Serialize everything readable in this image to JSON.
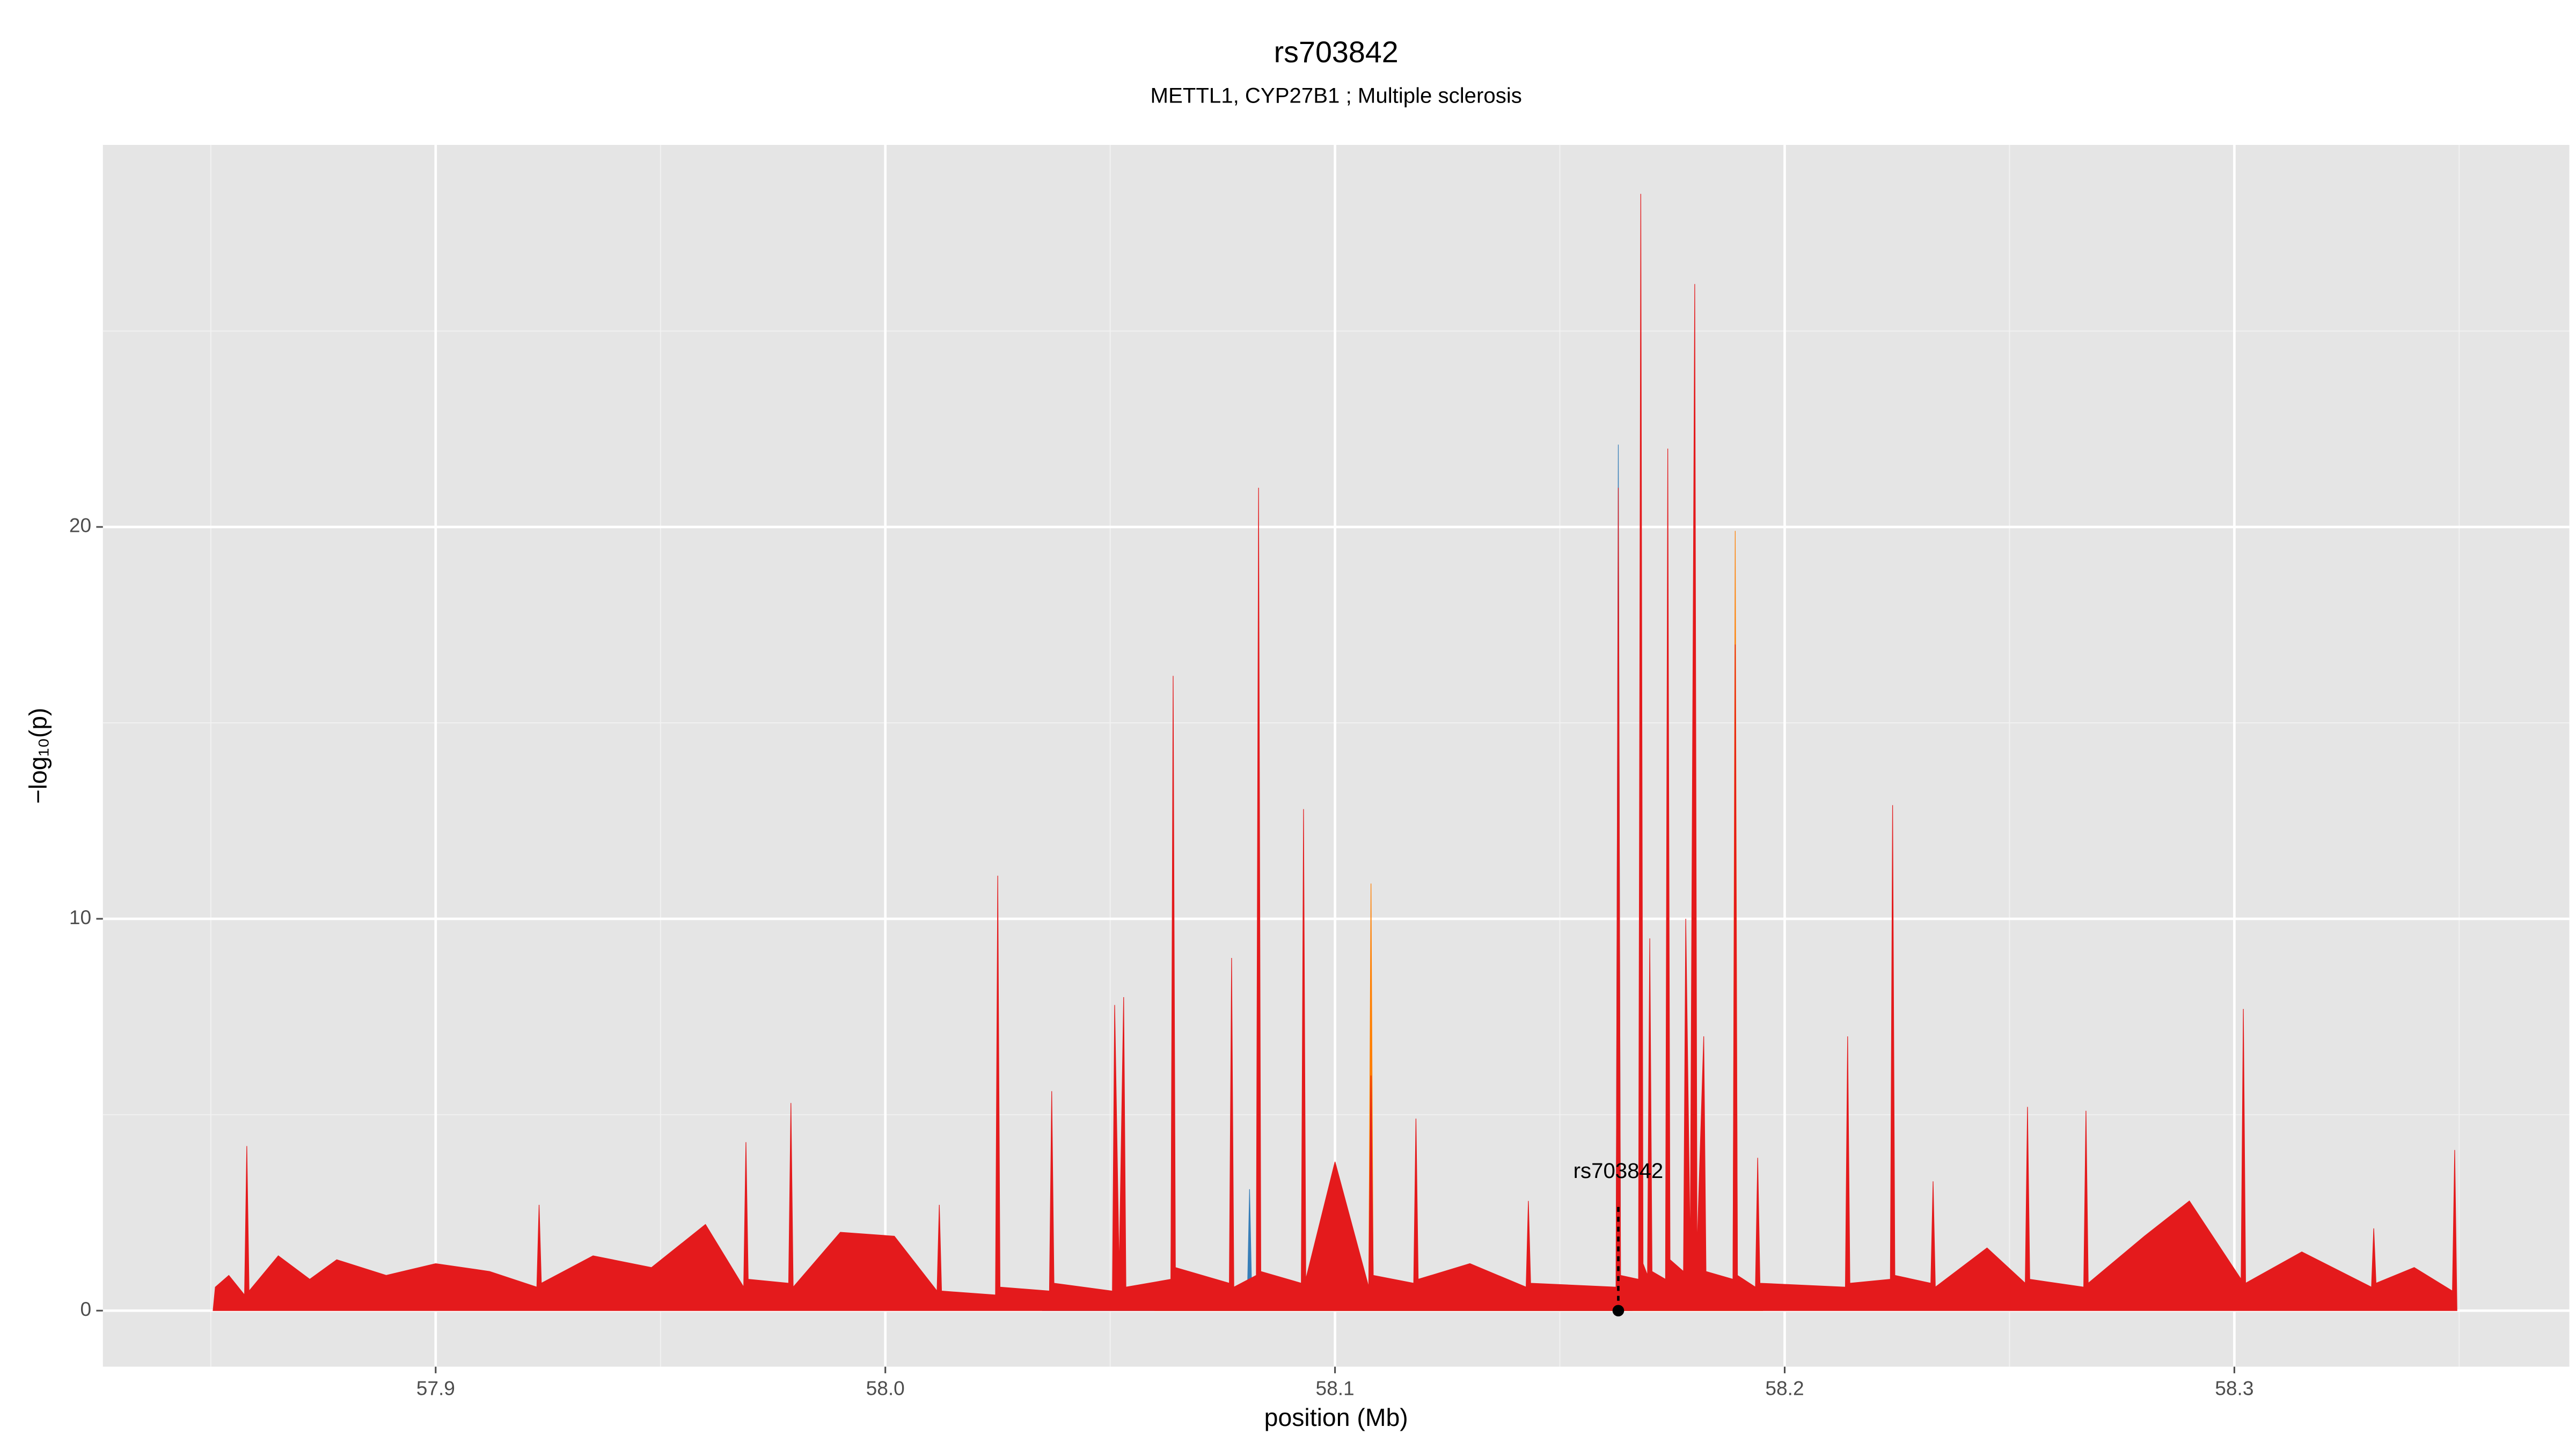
{
  "chart_data": {
    "type": "area",
    "title": "rs703842",
    "subtitle": "METTL1, CYP27B1 ; Multiple sclerosis",
    "xlabel": "position (Mb)",
    "ylabel": "−log₁₀(p)",
    "xlim": [
      57.826,
      58.3745
    ],
    "ylim": [
      -1.43,
      29.75
    ],
    "xticks": [
      57.9,
      {
        "value": 58,
        "label": "58.0"
      },
      58.1,
      58.2,
      58.3
    ],
    "yticks": [
      0,
      10,
      20
    ],
    "xminor": [
      57.85,
      57.95,
      58.05,
      58.15,
      58.25,
      58.35
    ],
    "yminor": [
      5,
      15,
      25
    ],
    "grid": true,
    "annotation": {
      "label": "rs703842",
      "x": 58.163,
      "y": 0
    },
    "series": [
      {
        "color": "#e41a1c",
        "x": [
          57.8505,
          57.851,
          57.854,
          57.8575,
          57.858,
          57.8585,
          57.865,
          57.872,
          57.878,
          57.889,
          57.9,
          57.912,
          57.9225,
          57.923,
          57.9235,
          57.935,
          57.948,
          57.96,
          57.9685,
          57.969,
          57.9695,
          57.9785,
          57.979,
          57.9795,
          57.99,
          58.002,
          58.0115,
          58.012,
          58.0125,
          58.0245,
          58.025,
          58.0255,
          58.0365,
          58.037,
          58.0375,
          58.0505,
          58.051,
          58.052,
          58.053,
          58.0535,
          58.0635,
          58.064,
          58.0645,
          58.0765,
          58.077,
          58.0775,
          58.0825,
          58.083,
          58.0835,
          58.0925,
          58.093,
          58.0935,
          58.1,
          58.1075,
          58.108,
          58.1085,
          58.1175,
          58.118,
          58.1185,
          58.13,
          58.1425,
          58.143,
          58.1435,
          58.1625,
          58.163,
          58.1635,
          58.1675,
          58.168,
          58.1685,
          58.1695,
          58.17,
          58.1705,
          58.1735,
          58.174,
          58.1745,
          58.1775,
          58.178,
          58.179,
          58.18,
          58.1805,
          58.182,
          58.1825,
          58.1885,
          58.189,
          58.1895,
          58.1935,
          58.194,
          58.1945,
          58.2135,
          58.214,
          58.2145,
          58.2235,
          58.224,
          58.2245,
          58.2325,
          58.233,
          58.2335,
          58.245,
          58.2535,
          58.254,
          58.2545,
          58.2665,
          58.267,
          58.2675,
          58.28,
          58.29,
          58.3015,
          58.302,
          58.3025,
          58.315,
          58.3305,
          58.331,
          58.3315,
          58.34,
          58.3485,
          58.349,
          58.3495
        ],
        "values": [
          0,
          0.6,
          0.9,
          0.4,
          4.2,
          0.5,
          1.4,
          0.8,
          1.3,
          0.9,
          1.2,
          1.0,
          0.6,
          2.7,
          0.7,
          1.4,
          1.1,
          2.2,
          0.6,
          4.3,
          0.8,
          0.7,
          5.3,
          0.6,
          2.0,
          1.9,
          0.5,
          2.7,
          0.5,
          0.4,
          11.1,
          0.6,
          0.5,
          5.6,
          0.7,
          0.5,
          7.8,
          1.0,
          8.0,
          0.6,
          0.8,
          16.2,
          1.1,
          0.7,
          9.0,
          0.6,
          0.9,
          21.0,
          1.0,
          0.7,
          12.8,
          0.8,
          3.8,
          0.6,
          6.0,
          0.9,
          0.7,
          4.9,
          0.8,
          1.2,
          0.6,
          2.8,
          0.7,
          0.6,
          21.0,
          0.9,
          0.8,
          28.5,
          1.2,
          0.9,
          9.5,
          1.0,
          0.8,
          22.0,
          1.3,
          1.0,
          10.0,
          1.4,
          26.2,
          1.5,
          7.0,
          1.0,
          0.8,
          17.0,
          0.9,
          0.6,
          3.9,
          0.7,
          0.6,
          7.0,
          0.7,
          0.8,
          12.9,
          0.9,
          0.7,
          3.3,
          0.6,
          1.6,
          0.7,
          5.2,
          0.8,
          0.6,
          5.1,
          0.7,
          1.9,
          2.8,
          0.8,
          7.7,
          0.7,
          1.5,
          0.6,
          2.1,
          0.7,
          1.1,
          0.5,
          4.1,
          0
        ]
      },
      {
        "color": "#ff7f00",
        "x": [
          58.06,
          58.0635,
          58.064,
          58.0645,
          58.1075,
          58.108,
          58.1085,
          58.1885,
          58.189,
          58.1895,
          58.195
        ],
        "values": [
          0,
          0.5,
          14.0,
          0.5,
          0.5,
          10.9,
          0.5,
          0.5,
          19.9,
          0.5,
          0
        ]
      },
      {
        "color": "#377eb8",
        "x": [
          58.035,
          58.0365,
          58.037,
          58.0375,
          58.0805,
          58.081,
          58.0815,
          58.1625,
          58.163,
          58.1635,
          58.166
        ],
        "values": [
          0,
          0.3,
          2.4,
          0.3,
          0.3,
          3.1,
          0.3,
          0.4,
          22.1,
          0.4,
          0
        ]
      }
    ]
  }
}
